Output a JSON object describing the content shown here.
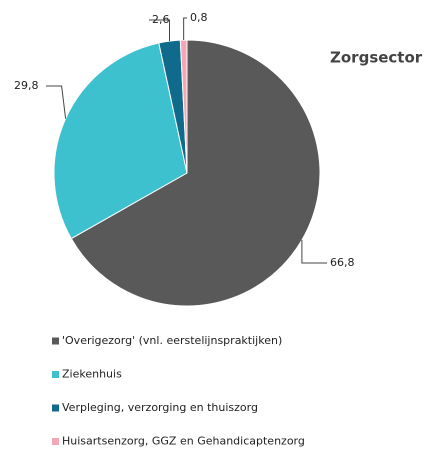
{
  "chart_data": {
    "type": "pie",
    "title": "Zorgsector",
    "categories": [
      "'Overigezorg' (vnl. eerstelijnspraktijken)",
      "Ziekenhuis",
      "Verpleging, verzorging en thuiszorg",
      "Huisartsenzorg, GGZ en Gehandicaptenzorg"
    ],
    "values": [
      66.8,
      29.8,
      2.6,
      0.8
    ],
    "value_labels": [
      "66,8",
      "29,8",
      "2,6",
      "0,8"
    ],
    "colors": [
      "#595959",
      "#3ec1cf",
      "#0f6a8c",
      "#f3a7b6"
    ]
  }
}
